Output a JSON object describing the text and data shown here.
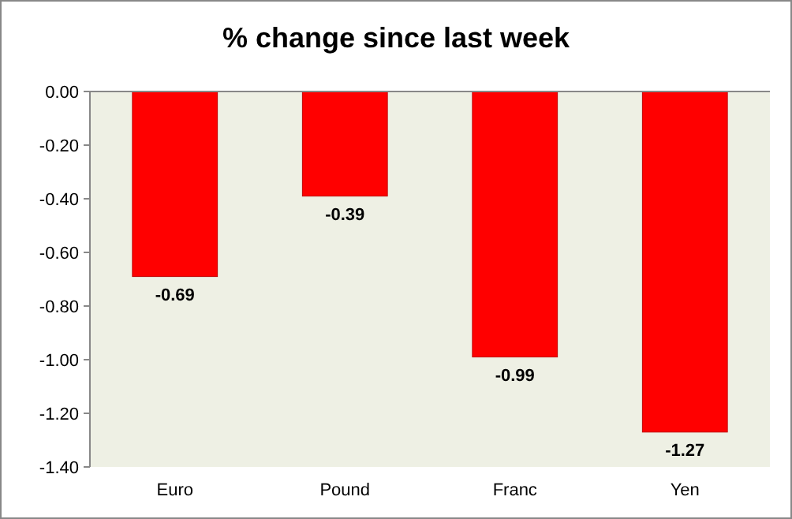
{
  "chart_data": {
    "type": "bar",
    "title": "% change since last week",
    "categories": [
      "Euro",
      "Pound",
      "Franc",
      "Yen"
    ],
    "values": [
      -0.69,
      -0.39,
      -0.99,
      -1.27
    ],
    "color": "#ff0000",
    "ylim": [
      -1.4,
      0
    ],
    "yticks": [
      {
        "value": 0,
        "label": "0.00"
      },
      {
        "value": -0.2,
        "label": "-0.20"
      },
      {
        "value": -0.4,
        "label": "-0.40"
      },
      {
        "value": -0.6,
        "label": "-0.60"
      },
      {
        "value": -0.8,
        "label": "-0.80"
      },
      {
        "value": -1,
        "label": "-1.00"
      },
      {
        "value": -1.2,
        "label": "-1.20"
      },
      {
        "value": -1.4,
        "label": "-1.40"
      }
    ],
    "value_labels": [
      "-0.69",
      "-0.39",
      "-0.99",
      "-1.27"
    ],
    "grid": false
  }
}
